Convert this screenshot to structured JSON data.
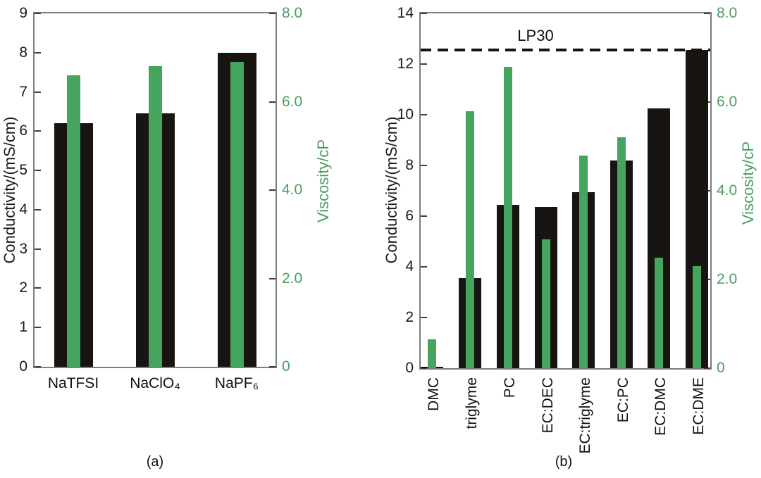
{
  "colors": {
    "conductivity_bar": "#181411",
    "viscosity_bar": "#45a55e",
    "viscosity_text": "#4a9e5e",
    "axis_frame": "#7d7d7d",
    "tick": "#3f3f3f",
    "reference_line": "#141414"
  },
  "chart_data": [
    {
      "id": "a",
      "type": "bar",
      "caption": "(a)",
      "grid": false,
      "legend": false,
      "categories": [
        "NaTFSI",
        "NaClO₄",
        "NaPF₆"
      ],
      "series": [
        {
          "name": "Conductivity",
          "axis": "left",
          "color_key": "conductivity_bar",
          "values": [
            6.2,
            6.45,
            8.0
          ]
        },
        {
          "name": "Viscosity",
          "axis": "right",
          "color_key": "viscosity_bar",
          "values": [
            6.6,
            6.8,
            6.9
          ]
        }
      ],
      "left_axis": {
        "label": "Conductivity/(mS/cm)",
        "min": 0,
        "max": 9,
        "tick_values": [
          0,
          1,
          2,
          3,
          4,
          5,
          6,
          7,
          8,
          9
        ],
        "tick_labels": [
          "0",
          "1",
          "2",
          "3",
          "4",
          "5",
          "6",
          "7",
          "8",
          "9"
        ]
      },
      "right_axis": {
        "label": "Viscosity/cP",
        "min": 0,
        "max": 8,
        "tick_values": [
          0,
          2,
          4,
          6,
          8
        ],
        "tick_labels": [
          "0",
          "2.0",
          "4.0",
          "6.0",
          "8.0"
        ]
      }
    },
    {
      "id": "b",
      "type": "bar",
      "caption": "(b)",
      "grid": false,
      "legend": false,
      "categories": [
        "DMC",
        "triglyme",
        "PC",
        "EC:DEC",
        "EC:triglyme",
        "EC:PC",
        "EC:DMC",
        "EC:DME"
      ],
      "series": [
        {
          "name": "Conductivity",
          "axis": "left",
          "color_key": "conductivity_bar",
          "values": [
            0.05,
            3.55,
            6.45,
            6.35,
            6.95,
            8.2,
            10.25,
            12.55
          ]
        },
        {
          "name": "Viscosity",
          "axis": "right",
          "color_key": "viscosity_bar",
          "values": [
            0.65,
            5.8,
            6.8,
            2.9,
            4.8,
            5.2,
            2.5,
            2.3
          ]
        }
      ],
      "left_axis": {
        "label": "Conductivity/(mS/cm)",
        "min": 0,
        "max": 14,
        "tick_values": [
          0,
          2,
          4,
          6,
          8,
          10,
          12,
          14
        ],
        "tick_labels": [
          "0",
          "2",
          "4",
          "6",
          "8",
          "10",
          "12",
          "14"
        ]
      },
      "right_axis": {
        "label": "Viscosity/cP",
        "min": 0,
        "max": 8,
        "tick_values": [
          0,
          2,
          4,
          6,
          8
        ],
        "tick_labels": [
          "0",
          "2.0",
          "4.0",
          "6.0",
          "8.0"
        ]
      },
      "annotation": {
        "label": "LP30",
        "axis": "left",
        "value": 12.55
      }
    }
  ]
}
